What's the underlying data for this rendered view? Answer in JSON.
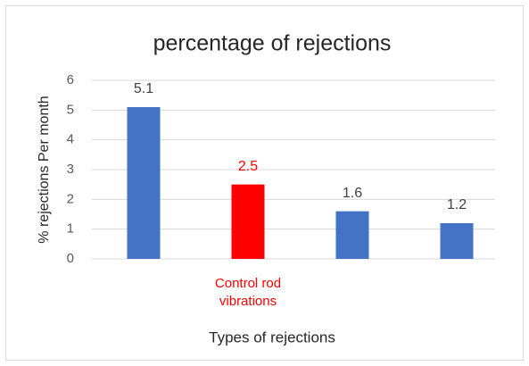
{
  "chart_data": {
    "type": "bar",
    "title": "percentage of rejections",
    "xlabel": "Types of rejections",
    "ylabel": "% rejections Per month",
    "categories": [
      null,
      "Control rod vibrations",
      null,
      null
    ],
    "values": [
      5.1,
      2.5,
      1.6,
      1.2
    ],
    "colors": [
      "#4472c4",
      "#ff0000",
      "#4472c4",
      "#4472c4"
    ],
    "ylim": [
      0,
      6
    ],
    "yticks": [
      0,
      1,
      2,
      3,
      4,
      5,
      6
    ],
    "grid": true
  }
}
